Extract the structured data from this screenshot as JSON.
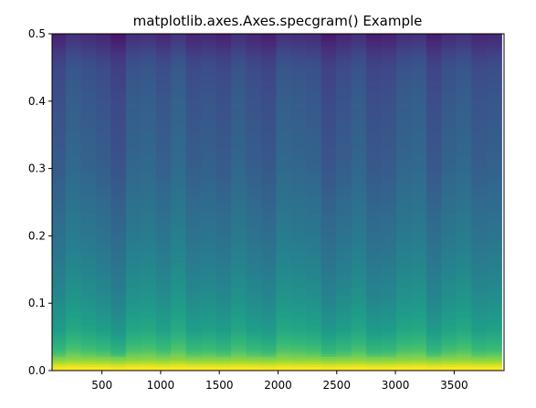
{
  "chart_data": {
    "type": "heatmap",
    "title": "matplotlib.axes.Axes.specgram() Example",
    "xlabel": "",
    "ylabel": "",
    "xlim": [
      75,
      3925
    ],
    "ylim": [
      0,
      0.5
    ],
    "x_ticks": [
      500,
      1000,
      1500,
      2000,
      2500,
      3000,
      3500
    ],
    "x_tick_labels": [
      "500",
      "1000",
      "1500",
      "2000",
      "2500",
      "3000",
      "3500"
    ],
    "y_ticks": [
      0.0,
      0.1,
      0.2,
      0.3,
      0.4,
      0.5
    ],
    "y_tick_labels": [
      "0.0",
      "0.1",
      "0.2",
      "0.3",
      "0.4",
      "0.5"
    ],
    "colormap": "viridis",
    "grid": false,
    "legend": "none",
    "time_bin_width": 128,
    "time_bin_centers": [
      128,
      256,
      384,
      512,
      640,
      768,
      896,
      1024,
      1152,
      1280,
      1408,
      1536,
      1664,
      1792,
      1920,
      2048,
      2176,
      2304,
      2432,
      2560,
      2688,
      2816,
      2944,
      3072,
      3200,
      3328,
      3456,
      3584,
      3712,
      3840
    ],
    "column_brightness_offsets": [
      -0.03,
      0.02,
      0.0,
      -0.02,
      -0.06,
      0.01,
      0.02,
      -0.01,
      0.03,
      -0.02,
      -0.01,
      -0.03,
      0.01,
      -0.02,
      -0.04,
      0.02,
      0.01,
      0.0,
      -0.05,
      -0.02,
      0.01,
      -0.04,
      -0.03,
      0.01,
      0.02,
      -0.04,
      0.0,
      0.02,
      -0.02,
      -0.01
    ],
    "frequency_level_profile": [
      {
        "frequency": 0.0,
        "level": 0.98
      },
      {
        "frequency": 0.004,
        "level": 1.0
      },
      {
        "frequency": 0.008,
        "level": 0.95
      },
      {
        "frequency": 0.015,
        "level": 0.84
      },
      {
        "frequency": 0.03,
        "level": 0.7
      },
      {
        "frequency": 0.06,
        "level": 0.58
      },
      {
        "frequency": 0.1,
        "level": 0.51
      },
      {
        "frequency": 0.15,
        "level": 0.45
      },
      {
        "frequency": 0.2,
        "level": 0.4
      },
      {
        "frequency": 0.25,
        "level": 0.36
      },
      {
        "frequency": 0.3,
        "level": 0.32
      },
      {
        "frequency": 0.35,
        "level": 0.3
      },
      {
        "frequency": 0.4,
        "level": 0.28
      },
      {
        "frequency": 0.45,
        "level": 0.25
      },
      {
        "frequency": 0.47,
        "level": 0.21
      },
      {
        "frequency": 0.485,
        "level": 0.16
      },
      {
        "frequency": 0.5,
        "level": 0.12
      }
    ]
  }
}
